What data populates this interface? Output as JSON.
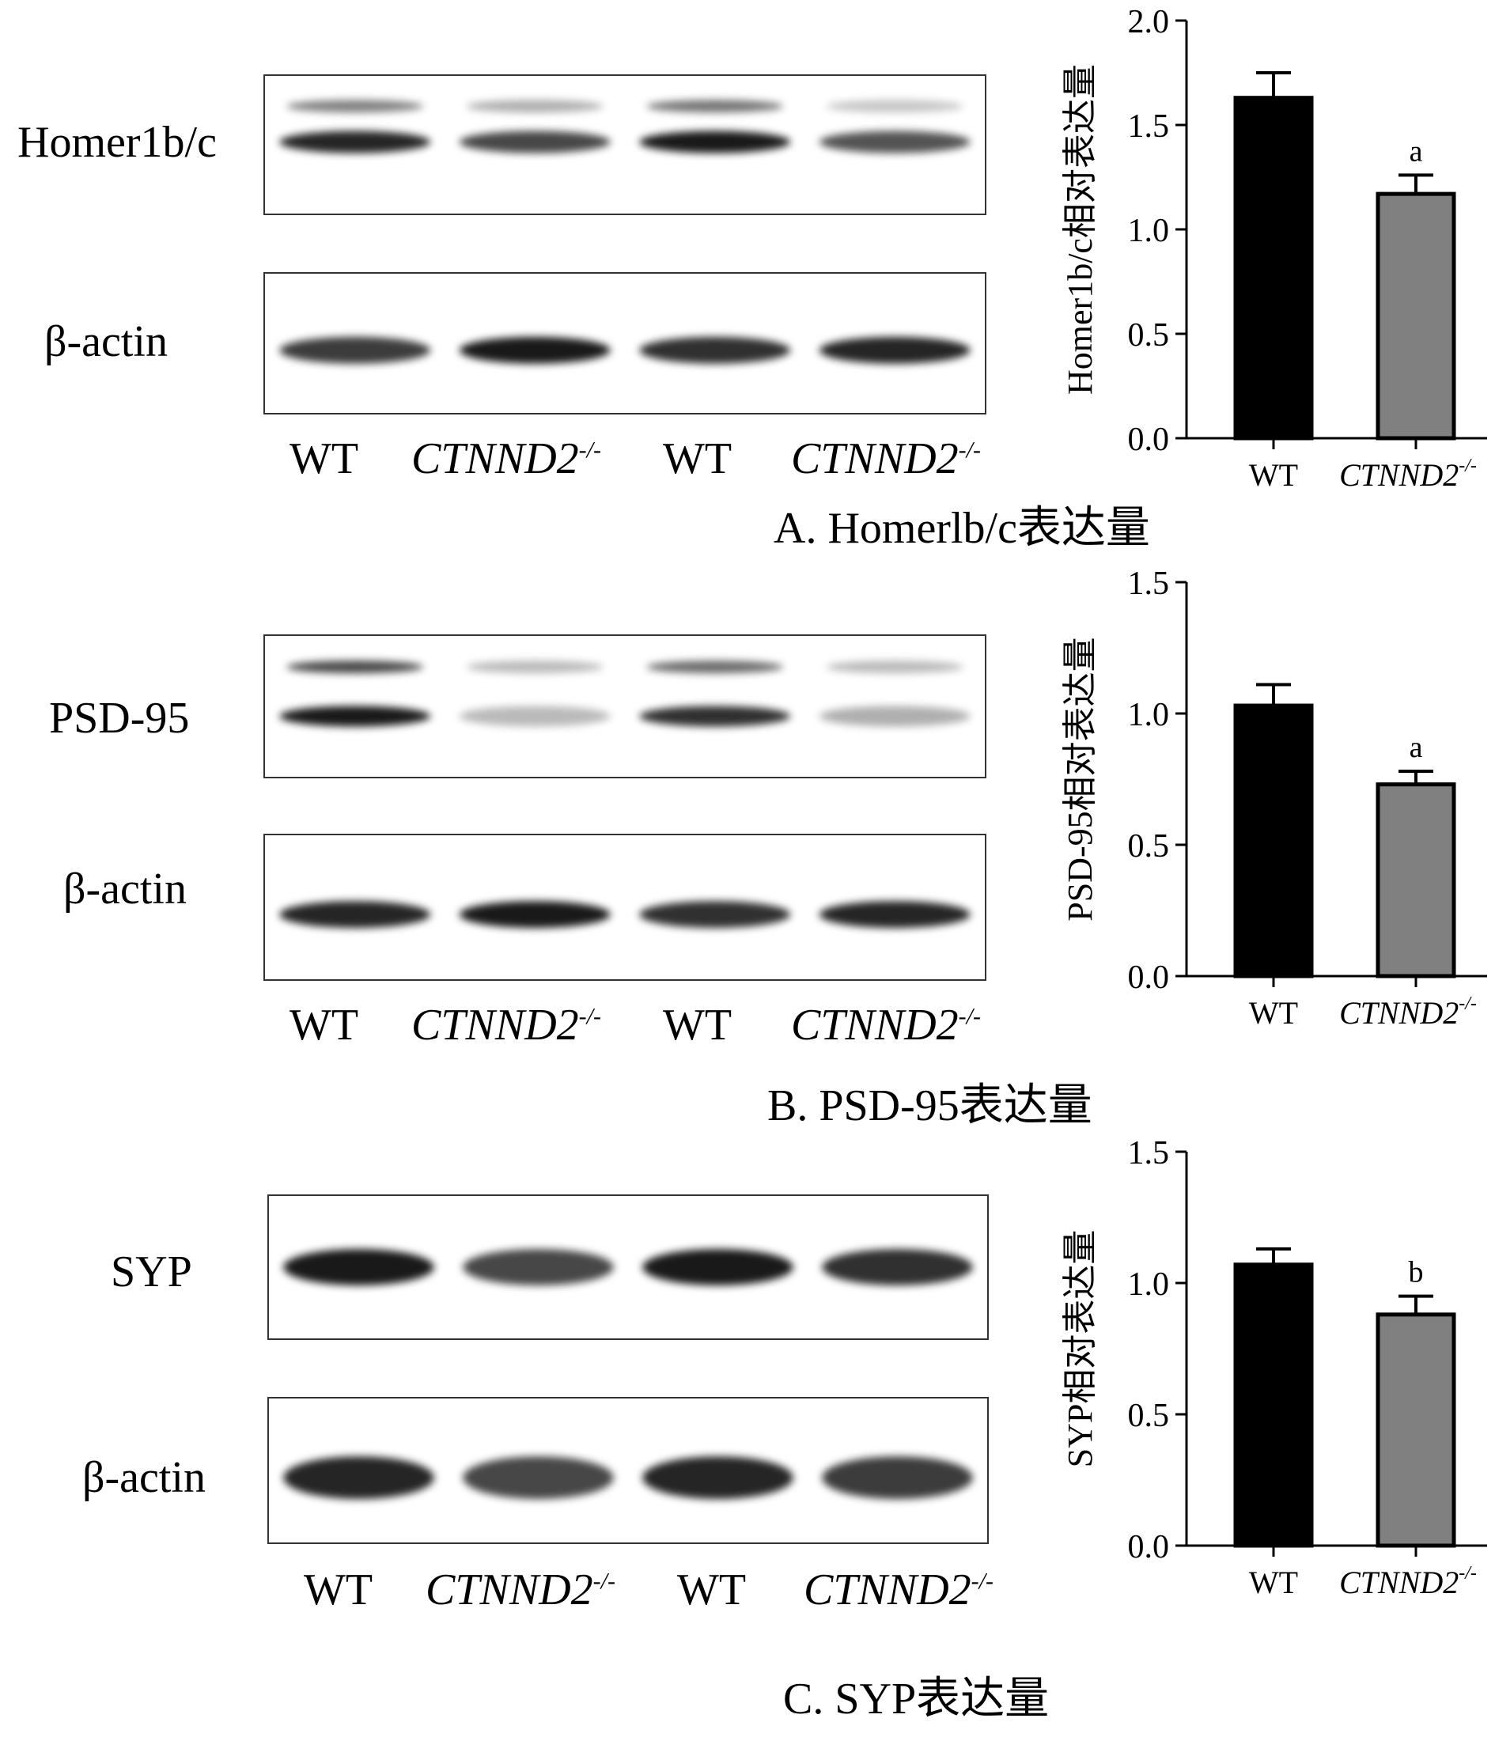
{
  "panels": [
    {
      "caption": "A. Homerlb/c表达量",
      "target_label": "Homer1b/c",
      "control_label": "β-actin",
      "lane_labels": [
        "WT",
        "CTNND2",
        "WT",
        "CTNND2"
      ],
      "lane_superscript": "-/-",
      "target_bands": [
        {
          "lane": 1,
          "intensity": 0.95,
          "upper": 0.55
        },
        {
          "lane": 2,
          "intensity": 0.8,
          "upper": 0.35
        },
        {
          "lane": 3,
          "intensity": 1.0,
          "upper": 0.6
        },
        {
          "lane": 4,
          "intensity": 0.75,
          "upper": 0.25
        }
      ],
      "control_bands": [
        {
          "lane": 1,
          "intensity": 0.85
        },
        {
          "lane": 2,
          "intensity": 1.0
        },
        {
          "lane": 3,
          "intensity": 0.9
        },
        {
          "lane": 4,
          "intensity": 0.95
        }
      ]
    },
    {
      "caption": "B. PSD-95表达量",
      "target_label": "PSD-95",
      "control_label": "β-actin",
      "lane_labels": [
        "WT",
        "CTNND2",
        "WT",
        "CTNND2"
      ],
      "lane_superscript": "-/-",
      "target_bands": [
        {
          "lane": 1,
          "intensity": 1.0,
          "upper": 0.8
        },
        {
          "lane": 2,
          "intensity": 0.3,
          "upper": 0.3
        },
        {
          "lane": 3,
          "intensity": 0.9,
          "upper": 0.65
        },
        {
          "lane": 4,
          "intensity": 0.35,
          "upper": 0.3
        }
      ],
      "control_bands": [
        {
          "lane": 1,
          "intensity": 0.95
        },
        {
          "lane": 2,
          "intensity": 1.0
        },
        {
          "lane": 3,
          "intensity": 0.9
        },
        {
          "lane": 4,
          "intensity": 0.95
        }
      ]
    },
    {
      "caption": "C. SYP表达量",
      "target_label": "SYP",
      "control_label": "β-actin",
      "lane_labels": [
        "WT",
        "CTNND2",
        "WT",
        "CTNND2"
      ],
      "lane_superscript": "-/-",
      "target_bands": [
        {
          "lane": 1,
          "intensity": 1.0,
          "upper": 0
        },
        {
          "lane": 2,
          "intensity": 0.8,
          "upper": 0
        },
        {
          "lane": 3,
          "intensity": 1.0,
          "upper": 0
        },
        {
          "lane": 4,
          "intensity": 0.9,
          "upper": 0
        }
      ],
      "control_bands": [
        {
          "lane": 1,
          "intensity": 0.95
        },
        {
          "lane": 2,
          "intensity": 0.8
        },
        {
          "lane": 3,
          "intensity": 0.95
        },
        {
          "lane": 4,
          "intensity": 0.85
        }
      ]
    }
  ],
  "chart_data": [
    {
      "type": "bar",
      "categories": [
        "WT",
        "CTNND2"
      ],
      "category_superscript": [
        "",
        "-/-"
      ],
      "values": [
        1.63,
        1.17
      ],
      "errors": [
        0.12,
        0.09
      ],
      "annotations": [
        "",
        "a"
      ],
      "colors": [
        "#000000",
        "#808080"
      ],
      "ylabel": "Homer1b/c相对表达量",
      "ylim": [
        0,
        2.0
      ],
      "yticks": [
        "0.0",
        "0.5",
        "1.0",
        "1.5",
        "2.0"
      ],
      "grid": false
    },
    {
      "type": "bar",
      "categories": [
        "WT",
        "CTNND2"
      ],
      "category_superscript": [
        "",
        "-/-"
      ],
      "values": [
        1.03,
        0.73
      ],
      "errors": [
        0.08,
        0.05
      ],
      "annotations": [
        "",
        "a"
      ],
      "colors": [
        "#000000",
        "#808080"
      ],
      "ylabel": "PSD-95相对表达量",
      "ylim": [
        0,
        1.5
      ],
      "yticks": [
        "0.0",
        "0.5",
        "1.0",
        "1.5"
      ],
      "grid": false
    },
    {
      "type": "bar",
      "categories": [
        "WT",
        "CTNND2"
      ],
      "category_superscript": [
        "",
        "-/-"
      ],
      "values": [
        1.07,
        0.88
      ],
      "errors": [
        0.06,
        0.07
      ],
      "annotations": [
        "",
        "b"
      ],
      "colors": [
        "#000000",
        "#808080"
      ],
      "ylabel": "SYP相对表达量",
      "ylim": [
        0,
        1.5
      ],
      "yticks": [
        "0.0",
        "0.5",
        "1.0",
        "1.5"
      ],
      "grid": false
    }
  ]
}
